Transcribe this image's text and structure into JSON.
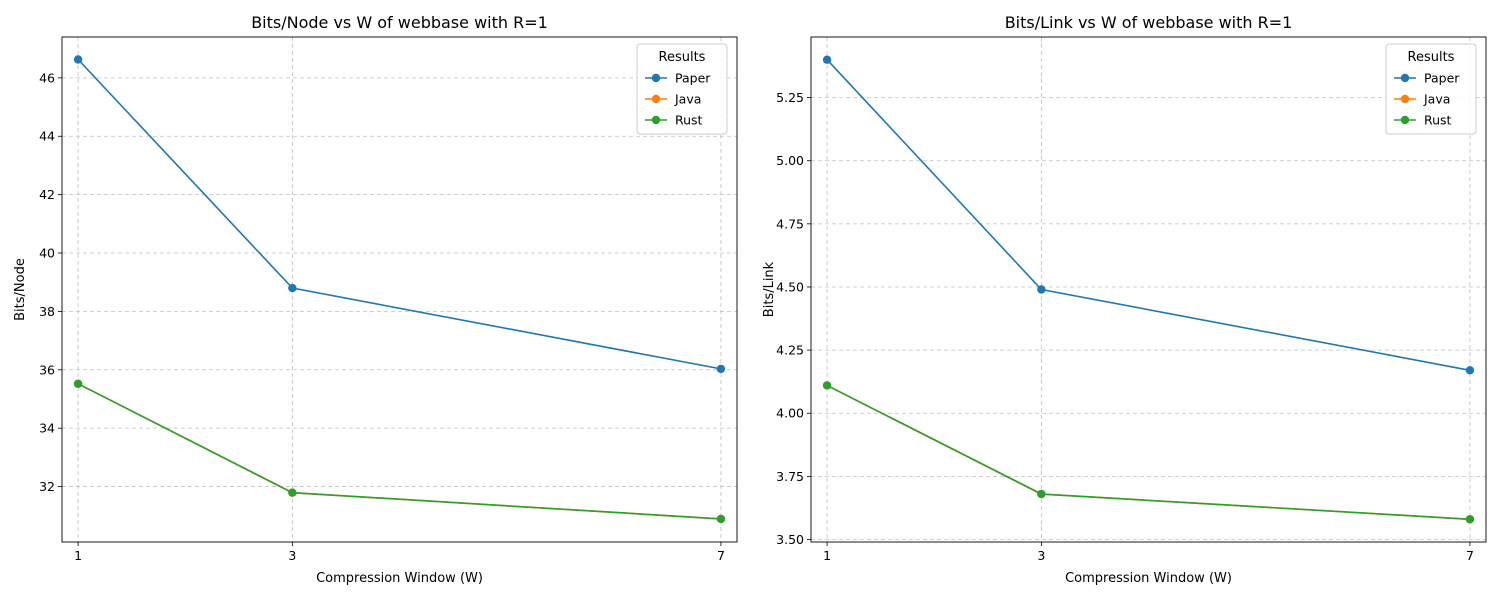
{
  "chart_data": [
    {
      "type": "line",
      "title": "Bits/Node vs W of webbase with R=1",
      "xlabel": "Compression Window (W)",
      "ylabel": "Bits/Node",
      "x": [
        1,
        3,
        7
      ],
      "x_tick_labels": [
        "1",
        "3",
        "7"
      ],
      "xlim": [
        0.85,
        7.15
      ],
      "ylim": [
        30.1,
        47.4
      ],
      "y_ticks": [
        32,
        34,
        36,
        38,
        40,
        42,
        44,
        46
      ],
      "y_tick_labels": [
        "32",
        "34",
        "36",
        "38",
        "40",
        "42",
        "44",
        "46"
      ],
      "grid": true,
      "legend_title": "Results",
      "legend_position": "top-right",
      "series": [
        {
          "name": "Paper",
          "color": "#1f77b4",
          "values": [
            46.63,
            38.8,
            36.03
          ]
        },
        {
          "name": "Java",
          "color": "#ff7f0e",
          "values": [
            35.52,
            31.79,
            30.89
          ]
        },
        {
          "name": "Rust",
          "color": "#2ca02c",
          "values": [
            35.52,
            31.79,
            30.89
          ]
        }
      ]
    },
    {
      "type": "line",
      "title": "Bits/Link vs W of webbase with R=1",
      "xlabel": "Compression Window (W)",
      "ylabel": "Bits/Link",
      "x": [
        1,
        3,
        7
      ],
      "x_tick_labels": [
        "1",
        "3",
        "7"
      ],
      "xlim": [
        0.85,
        7.15
      ],
      "ylim": [
        3.49,
        5.49
      ],
      "y_ticks": [
        3.5,
        3.75,
        4.0,
        4.25,
        4.5,
        4.75,
        5.0,
        5.25
      ],
      "y_tick_labels": [
        "3.50",
        "3.75",
        "4.00",
        "4.25",
        "4.50",
        "4.75",
        "5.00",
        "5.25"
      ],
      "grid": true,
      "legend_title": "Results",
      "legend_position": "top-right",
      "series": [
        {
          "name": "Paper",
          "color": "#1f77b4",
          "values": [
            5.4,
            4.49,
            4.17
          ]
        },
        {
          "name": "Java",
          "color": "#ff7f0e",
          "values": [
            4.11,
            3.68,
            3.58
          ]
        },
        {
          "name": "Rust",
          "color": "#2ca02c",
          "values": [
            4.11,
            3.68,
            3.58
          ]
        }
      ]
    }
  ]
}
